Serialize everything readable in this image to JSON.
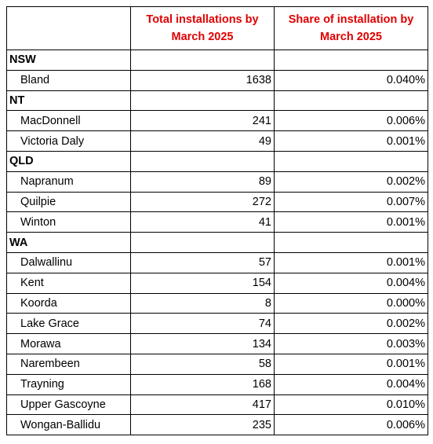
{
  "header": {
    "total": "Total installations by March 2025",
    "share": "Share of installation by March 2025"
  },
  "groups": [
    {
      "name": "NSW",
      "rows": [
        {
          "name": "Bland",
          "total": 1638,
          "share": "0.040%"
        }
      ]
    },
    {
      "name": "NT",
      "rows": [
        {
          "name": "MacDonnell",
          "total": 241,
          "share": "0.006%"
        },
        {
          "name": "Victoria Daly",
          "total": 49,
          "share": "0.001%"
        }
      ]
    },
    {
      "name": "QLD",
      "rows": [
        {
          "name": "Napranum",
          "total": 89,
          "share": "0.002%"
        },
        {
          "name": "Quilpie",
          "total": 272,
          "share": "0.007%"
        },
        {
          "name": "Winton",
          "total": 41,
          "share": "0.001%"
        }
      ]
    },
    {
      "name": "WA",
      "rows": [
        {
          "name": "Dalwallinu",
          "total": 57,
          "share": "0.001%"
        },
        {
          "name": "Kent",
          "total": 154,
          "share": "0.004%"
        },
        {
          "name": "Koorda",
          "total": 8,
          "share": "0.000%"
        },
        {
          "name": "Lake Grace",
          "total": 74,
          "share": "0.002%"
        },
        {
          "name": "Morawa",
          "total": 134,
          "share": "0.003%"
        },
        {
          "name": "Narembeen",
          "total": 58,
          "share": "0.001%"
        },
        {
          "name": "Trayning",
          "total": 168,
          "share": "0.004%"
        },
        {
          "name": "Upper Gascoyne",
          "total": 417,
          "share": "0.010%"
        },
        {
          "name": "Wongan-Ballidu",
          "total": 235,
          "share": "0.006%"
        }
      ]
    }
  ]
}
